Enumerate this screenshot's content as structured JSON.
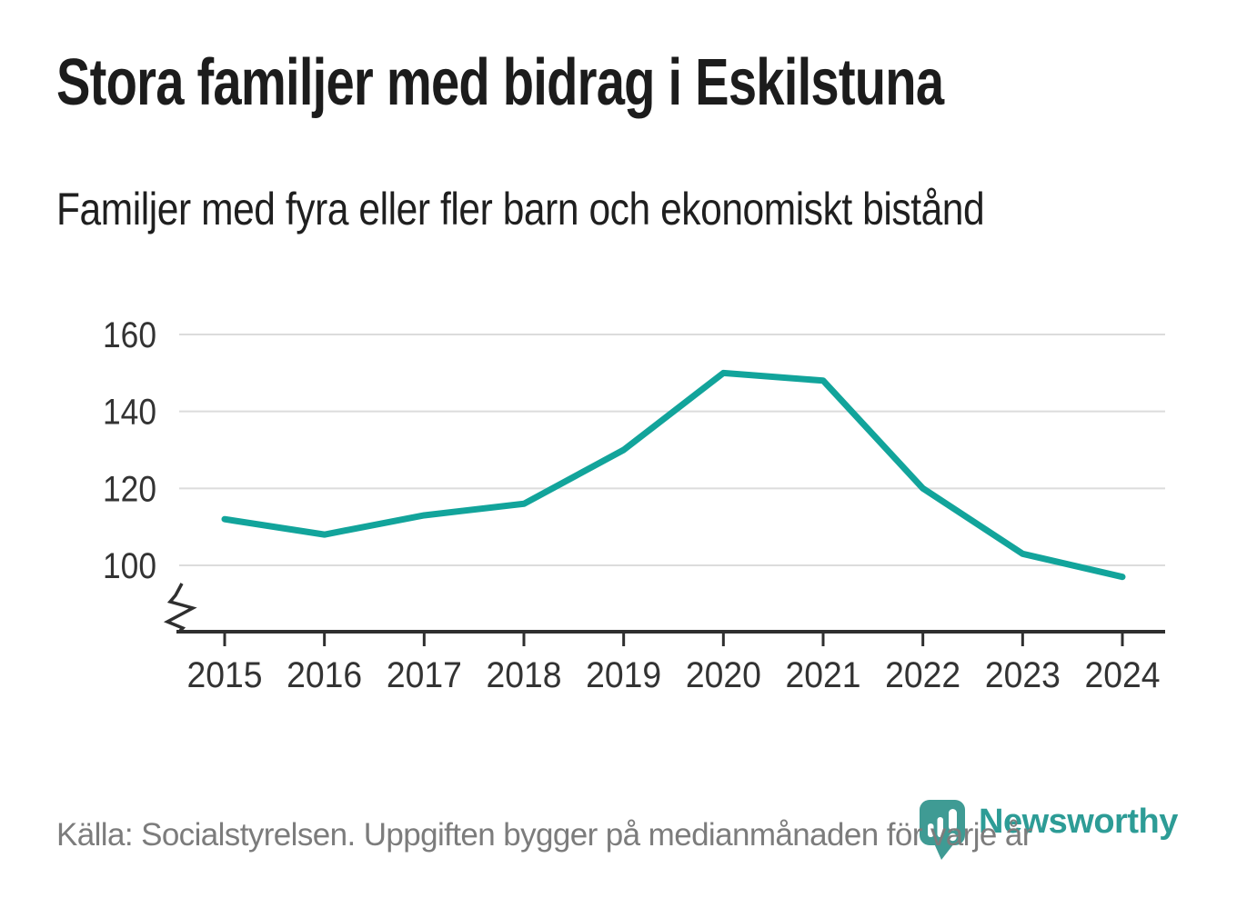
{
  "header": {
    "title": "Stora familjer med bidrag i Eskilstuna",
    "subtitle": "Familjer med fyra eller fler barn och ekonomiskt bistånd"
  },
  "chart_data": {
    "type": "line",
    "title": "Stora familjer med bidrag i Eskilstuna",
    "subtitle": "Familjer med fyra eller fler barn och ekonomiskt bistånd",
    "x": [
      2015,
      2016,
      2017,
      2018,
      2019,
      2020,
      2021,
      2022,
      2023,
      2024
    ],
    "x_tick_labels": [
      "2015",
      "2016",
      "2017",
      "2018",
      "2019",
      "2020",
      "2021",
      "2022",
      "2023",
      "2024"
    ],
    "series": [
      {
        "name": "Familjer med fyra eller fler barn och ekonomiskt bistånd",
        "color": "#12a49b",
        "values": [
          112,
          108,
          113,
          116,
          130,
          150,
          148,
          120,
          103,
          97
        ]
      }
    ],
    "xlabel": "",
    "ylabel": "",
    "y_ticks": [
      100,
      120,
      140,
      160
    ],
    "ylim": [
      88,
      168
    ],
    "y_axis_break": true,
    "grid": "horizontal",
    "legend": "none"
  },
  "footer": {
    "source_text": "Källa: Socialstyrelsen. Uppgiften bygger på medianmånaden för varje år"
  },
  "branding": {
    "wordmark": "Newsworthy",
    "icon": "newsworthy-speech-bubble-chart-icon",
    "brand_color": "#2d9c96",
    "icon_color": "#3f9b94"
  },
  "colors": {
    "background": "#ffffff",
    "line": "#12a49b",
    "grid": "#dcdcdc",
    "axis": "#2f2f2f",
    "tick_label": "#333333",
    "heading_text": "#1c1c1c",
    "muted_text": "#7c7c7c"
  }
}
